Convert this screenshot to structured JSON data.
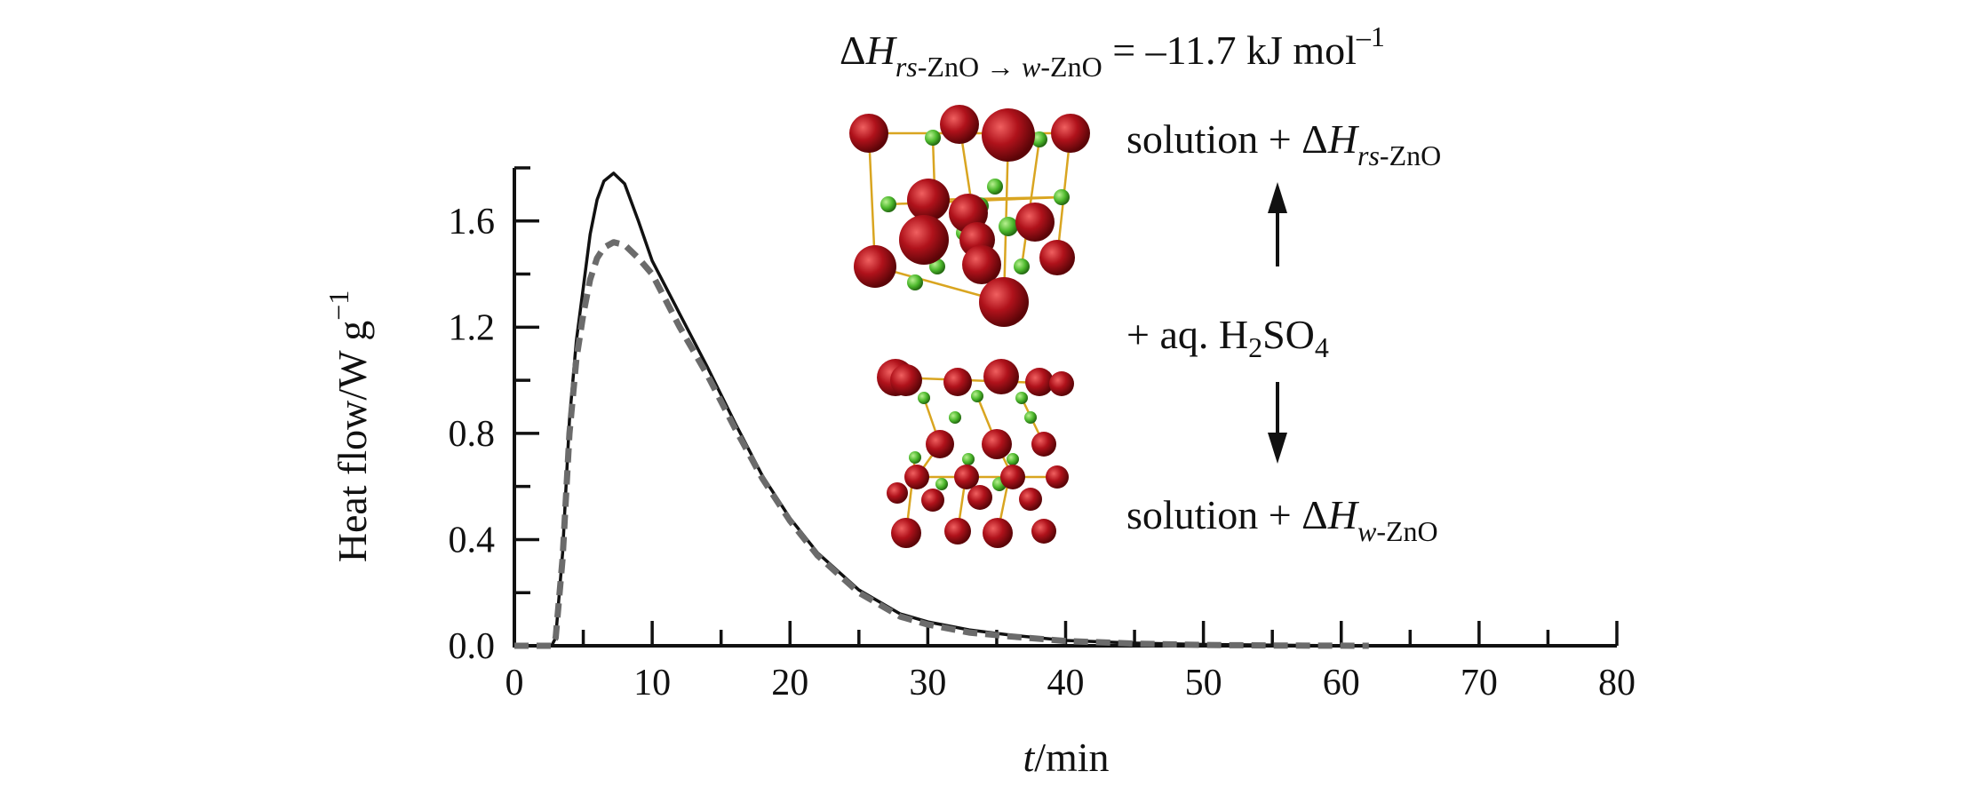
{
  "chart_data": {
    "type": "line",
    "title": "",
    "xlabel": {
      "italic": "t",
      "rest": "/min"
    },
    "ylabel": {
      "main": "Heat flow/W g",
      "sup": "−1"
    },
    "xlim": [
      0,
      80
    ],
    "ylim": [
      0,
      1.8
    ],
    "xticks": [
      "0",
      "10",
      "20",
      "30",
      "40",
      "50",
      "60",
      "70",
      "80"
    ],
    "yticks": [
      "0.0",
      "0.4",
      "0.8",
      "1.2",
      "1.6"
    ],
    "grid": false,
    "legend": "none",
    "series": [
      {
        "style": "solid",
        "color": "#111111",
        "x": [
          0,
          2.7,
          3.0,
          3.5,
          4,
          4.5,
          5,
          5.5,
          6,
          6.5,
          7.2,
          8,
          9,
          10,
          12,
          14,
          16,
          18,
          20,
          22,
          25,
          28,
          30,
          33,
          36,
          40,
          45,
          50,
          60
        ],
        "y": [
          0,
          0,
          0.03,
          0.35,
          0.85,
          1.15,
          1.35,
          1.55,
          1.68,
          1.75,
          1.78,
          1.74,
          1.6,
          1.45,
          1.25,
          1.05,
          0.84,
          0.64,
          0.48,
          0.35,
          0.21,
          0.12,
          0.09,
          0.06,
          0.04,
          0.02,
          0.01,
          0.005,
          0
        ]
      },
      {
        "style": "dashed",
        "color": "#6b6b6b",
        "x": [
          0,
          2.7,
          3.0,
          3.5,
          4,
          4.5,
          5,
          5.5,
          6,
          6.5,
          7.2,
          8,
          9,
          10,
          12,
          14,
          16,
          18,
          20,
          22,
          25,
          28,
          30,
          33,
          36,
          40,
          45,
          50,
          55,
          62
        ],
        "y": [
          0,
          0,
          0.03,
          0.33,
          0.8,
          1.08,
          1.25,
          1.38,
          1.46,
          1.5,
          1.52,
          1.51,
          1.46,
          1.4,
          1.2,
          1.02,
          0.82,
          0.63,
          0.47,
          0.34,
          0.2,
          0.11,
          0.08,
          0.05,
          0.035,
          0.018,
          0.008,
          0.003,
          0.001,
          0
        ]
      }
    ],
    "annotations": {
      "equation": {
        "dh": "Δ",
        "h": "H",
        "sub_rs": "rs",
        "sub_mid": "-ZnO → ",
        "sub_w": "w",
        "sub_end": "-ZnO",
        "rhs": " = –11.7 kJ mol",
        "sup": "–1"
      },
      "top_label": {
        "prefix": "solution + Δ",
        "h": "H",
        "sub_italic": "rs",
        "sub_rest": "-ZnO"
      },
      "middle_label": {
        "prefix": "+ aq. H",
        "sub1": "2",
        "mid": "SO",
        "sub2": "4"
      },
      "bottom_label": {
        "prefix": "solution + Δ",
        "h": "H",
        "sub_italic": "w",
        "sub_rest": "-ZnO"
      }
    },
    "colors": {
      "oxygen_atom": "#b0121b",
      "zinc_atom": "#4cb82c",
      "bond": "#d9a520"
    }
  }
}
